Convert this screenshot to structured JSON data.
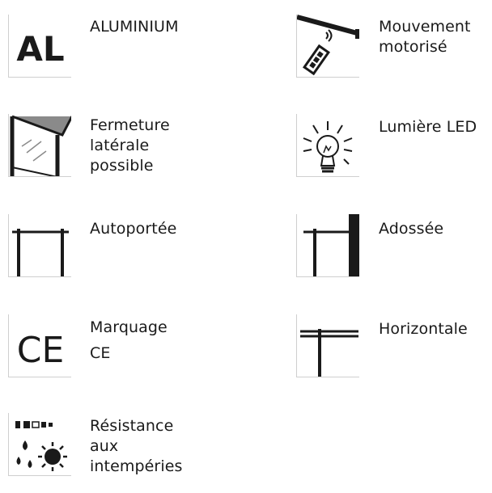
{
  "features": {
    "aluminium": {
      "icon_text": "AL",
      "lines": [
        "ALUMINIUM"
      ]
    },
    "motorise": {
      "icon": "remote-control-icon",
      "lines": [
        "Mouvement",
        "motorisé"
      ]
    },
    "fermeture": {
      "icon": "side-panel-icon",
      "lines": [
        "Fermeture",
        "latérale",
        "possible"
      ]
    },
    "led": {
      "icon": "light-bulb-icon",
      "lines": [
        "Lumière LED"
      ]
    },
    "autoportee": {
      "icon": "freestanding-frame-icon",
      "lines": [
        "Autoportée"
      ]
    },
    "adossee": {
      "icon": "wall-mounted-frame-icon",
      "lines": [
        "Adossée"
      ]
    },
    "marquage": {
      "icon_text": "CE",
      "lines": [
        "Marquage",
        "CE"
      ]
    },
    "horizontale": {
      "icon": "horizontal-frame-icon",
      "lines": [
        "Horizontale"
      ]
    },
    "resistance": {
      "icon": "weather-icon",
      "lines": [
        "Résistance",
        "aux",
        "intempéries"
      ]
    }
  },
  "colors": {
    "text": "#1a1a1a",
    "icon_border": "#cfcfcf",
    "roof_gray": "#8a8a8a"
  }
}
